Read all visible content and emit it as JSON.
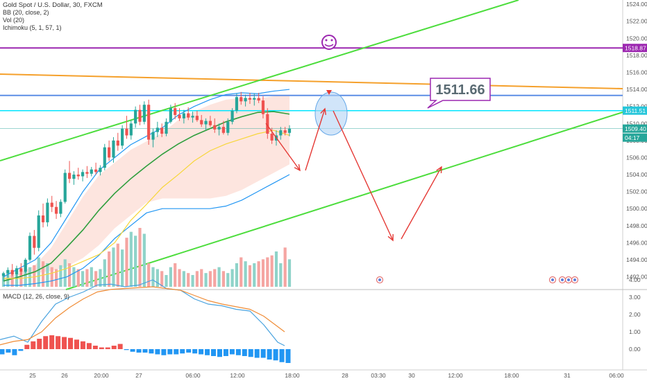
{
  "header": {
    "title": "Gold Spot / U.S. Dollar, 30, FXCM",
    "indicators": [
      "BB (20, close, 2)",
      "Vol (20)",
      "Ichimoku (5, 1, 57, 1)"
    ]
  },
  "macd": {
    "label": "MACD (12, 26, close, 9)",
    "ticks": [
      "4.00",
      "3.00",
      "2.00",
      "1.00",
      "0.00"
    ]
  },
  "chart_data": {
    "type": "candlestick",
    "symbol": "Gold Spot / U.S. Dollar",
    "timeframe": "30",
    "exchange": "FXCM",
    "price_ticks": [
      "1524.00",
      "1522.00",
      "1520.00",
      "1518.00",
      "1516.00",
      "1514.00",
      "1512.00",
      "1510.00",
      "1508.00",
      "1506.00",
      "1504.00",
      "1502.00",
      "1500.00",
      "1498.00",
      "1496.00",
      "1494.00",
      "1492.00"
    ],
    "price_range": [
      1490.5,
      1524.5
    ],
    "time_labels": [
      "25",
      "26",
      "20:00",
      "27",
      "06:00",
      "12:00",
      "18:00",
      "28",
      "03:30",
      "30",
      "12:00",
      "18:00",
      "31",
      "06:00"
    ],
    "price_badges": [
      {
        "value": "1518.87",
        "color": "#9c27b0"
      },
      {
        "value": "1511.51",
        "color": "#26c6da"
      },
      {
        "value": "1509.40",
        "color": "#26a69a"
      },
      {
        "value": "04:17",
        "color": "#26a69a"
      }
    ],
    "callout": "1511.66",
    "horizontal_levels": [
      {
        "price": 1518.87,
        "color": "#9c27b0"
      },
      {
        "price": 1511.51,
        "color": "#00e5ff"
      },
      {
        "price": 1513.3,
        "color": "#5c8ee6"
      },
      {
        "price": 1509.4,
        "color": "#26a69a"
      }
    ],
    "candles": [
      [
        1492.1,
        1492.6,
        1491.5,
        1492.4
      ],
      [
        1492.4,
        1493.1,
        1491.9,
        1492.8
      ],
      [
        1492.8,
        1493.5,
        1492.1,
        1492.3
      ],
      [
        1492.3,
        1493.3,
        1491.8,
        1493.0
      ],
      [
        1493.0,
        1493.6,
        1492.2,
        1492.6
      ],
      [
        1492.6,
        1494.2,
        1492.4,
        1494.0
      ],
      [
        1494.0,
        1497.2,
        1493.8,
        1496.8
      ],
      [
        1496.8,
        1497.5,
        1494.6,
        1495.4
      ],
      [
        1495.4,
        1499.8,
        1495.0,
        1499.2
      ],
      [
        1499.2,
        1500.6,
        1497.8,
        1498.4
      ],
      [
        1498.4,
        1501.2,
        1497.9,
        1500.7
      ],
      [
        1500.7,
        1501.5,
        1499.6,
        1500.2
      ],
      [
        1500.2,
        1500.9,
        1498.8,
        1499.4
      ],
      [
        1499.4,
        1501.1,
        1499.0,
        1500.8
      ],
      [
        1500.8,
        1504.6,
        1500.6,
        1504.2
      ],
      [
        1504.2,
        1505.6,
        1503.0,
        1503.5
      ],
      [
        1503.5,
        1504.4,
        1502.8,
        1504.0
      ],
      [
        1504.0,
        1504.8,
        1503.4,
        1503.8
      ],
      [
        1503.8,
        1504.6,
        1503.2,
        1504.3
      ],
      [
        1504.3,
        1505.0,
        1503.6,
        1504.1
      ],
      [
        1504.1,
        1504.9,
        1503.8,
        1504.6
      ],
      [
        1504.6,
        1505.4,
        1504.0,
        1504.3
      ],
      [
        1504.3,
        1505.1,
        1503.9,
        1504.8
      ],
      [
        1504.8,
        1507.6,
        1504.5,
        1507.2
      ],
      [
        1507.2,
        1508.0,
        1505.6,
        1506.0
      ],
      [
        1506.0,
        1508.4,
        1505.4,
        1508.0
      ],
      [
        1508.0,
        1508.9,
        1506.8,
        1507.4
      ],
      [
        1507.4,
        1509.8,
        1507.0,
        1509.4
      ],
      [
        1509.4,
        1510.9,
        1508.2,
        1508.6
      ],
      [
        1508.6,
        1510.4,
        1508.1,
        1510.0
      ],
      [
        1510.0,
        1512.0,
        1509.5,
        1511.6
      ],
      [
        1511.6,
        1512.2,
        1509.8,
        1510.2
      ],
      [
        1510.2,
        1512.6,
        1509.9,
        1512.2
      ],
      [
        1512.2,
        1512.8,
        1507.5,
        1508.1
      ],
      [
        1508.1,
        1509.4,
        1507.2,
        1509.0
      ],
      [
        1509.0,
        1510.2,
        1508.4,
        1509.5
      ],
      [
        1509.5,
        1510.0,
        1508.4,
        1508.8
      ],
      [
        1508.8,
        1510.6,
        1508.5,
        1510.2
      ],
      [
        1510.2,
        1512.2,
        1510.0,
        1511.8
      ],
      [
        1511.8,
        1512.4,
        1510.5,
        1511.0
      ],
      [
        1511.0,
        1511.8,
        1510.3,
        1510.6
      ],
      [
        1510.6,
        1511.6,
        1510.0,
        1511.2
      ],
      [
        1511.2,
        1511.9,
        1510.4,
        1510.7
      ],
      [
        1510.7,
        1511.4,
        1510.1,
        1510.9
      ],
      [
        1510.9,
        1511.5,
        1510.2,
        1510.4
      ],
      [
        1510.4,
        1511.0,
        1509.6,
        1509.9
      ],
      [
        1509.9,
        1510.6,
        1509.2,
        1510.3
      ],
      [
        1510.3,
        1510.9,
        1509.6,
        1509.8
      ],
      [
        1509.8,
        1510.6,
        1508.9,
        1509.3
      ],
      [
        1509.3,
        1510.0,
        1508.6,
        1509.6
      ],
      [
        1509.6,
        1510.3,
        1508.7,
        1508.9
      ],
      [
        1508.9,
        1510.6,
        1508.6,
        1510.2
      ],
      [
        1510.2,
        1511.8,
        1509.9,
        1511.5
      ],
      [
        1511.5,
        1513.5,
        1511.2,
        1513.1
      ],
      [
        1513.1,
        1513.7,
        1512.2,
        1512.6
      ],
      [
        1512.6,
        1513.4,
        1512.0,
        1513.0
      ],
      [
        1513.0,
        1513.6,
        1512.3,
        1512.8
      ],
      [
        1512.8,
        1513.5,
        1512.1,
        1513.0
      ],
      [
        1513.0,
        1513.6,
        1512.4,
        1512.7
      ],
      [
        1512.7,
        1513.2,
        1510.6,
        1511.1
      ],
      [
        1511.1,
        1511.8,
        1508.2,
        1508.8
      ],
      [
        1508.8,
        1509.5,
        1507.6,
        1508.0
      ],
      [
        1508.0,
        1509.2,
        1507.4,
        1508.6
      ],
      [
        1508.6,
        1509.6,
        1508.1,
        1509.2
      ],
      [
        1509.2,
        1509.6,
        1508.6,
        1508.9
      ],
      [
        1508.9,
        1509.8,
        1508.5,
        1509.4
      ]
    ],
    "volume": [
      7,
      8,
      7,
      9,
      8,
      12,
      10,
      11,
      15,
      13,
      12,
      10,
      9,
      11,
      14,
      12,
      10,
      9,
      8,
      9,
      10,
      8,
      9,
      14,
      18,
      20,
      22,
      19,
      25,
      28,
      26,
      30,
      27,
      12,
      10,
      9,
      8,
      6,
      10,
      12,
      9,
      8,
      7,
      6,
      8,
      9,
      7,
      8,
      9,
      10,
      8,
      7,
      9,
      12,
      15,
      13,
      11,
      12,
      13,
      14,
      15,
      16,
      18,
      12,
      20,
      14
    ],
    "macd_values": [
      {
        "x": 0,
        "macd": 0.55,
        "signal": 0.25
      },
      {
        "x": 10,
        "macd": 0.75,
        "signal": 0.45
      },
      {
        "x": 20,
        "macd": 0.4,
        "signal": 0.55
      },
      {
        "x": 30,
        "macd": 1.6,
        "signal": 1.0
      },
      {
        "x": 40,
        "macd": 2.6,
        "signal": 1.8
      },
      {
        "x": 50,
        "macd": 3.0,
        "signal": 2.4
      },
      {
        "x": 60,
        "macd": 3.3,
        "signal": 2.9
      },
      {
        "x": 70,
        "macd": 3.7,
        "signal": 3.3
      },
      {
        "x": 80,
        "macd": 3.75,
        "signal": 3.45
      },
      {
        "x": 90,
        "macd": 3.6,
        "signal": 3.5
      },
      {
        "x": 100,
        "macd": 3.7,
        "signal": 3.55
      },
      {
        "x": 110,
        "macd": 4.0,
        "signal": 3.6
      },
      {
        "x": 120,
        "macd": 3.5,
        "signal": 3.5
      },
      {
        "x": 130,
        "macd": 3.4,
        "signal": 3.4
      },
      {
        "x": 140,
        "macd": 2.9,
        "signal": 3.1
      },
      {
        "x": 150,
        "macd": 2.6,
        "signal": 2.8
      },
      {
        "x": 160,
        "macd": 2.5,
        "signal": 2.6
      },
      {
        "x": 170,
        "macd": 2.3,
        "signal": 2.45
      },
      {
        "x": 180,
        "macd": 2.2,
        "signal": 2.3
      },
      {
        "x": 190,
        "macd": 1.4,
        "signal": 1.9
      },
      {
        "x": 200,
        "macd": 0.4,
        "signal": 1.3
      },
      {
        "x": 205,
        "macd": 0.2,
        "signal": 1.0
      }
    ],
    "macd_hist": [
      -0.3,
      -0.2,
      -0.35,
      -0.1,
      0.25,
      0.45,
      0.6,
      0.75,
      0.8,
      0.75,
      0.7,
      0.65,
      0.55,
      0.45,
      0.35,
      0.2,
      0.1,
      0.1,
      0.2,
      0.3,
      -0.05,
      -0.15,
      -0.2,
      -0.2,
      -0.25,
      -0.3,
      -0.35,
      -0.3,
      -0.3,
      -0.25,
      -0.2,
      -0.25,
      -0.3,
      -0.35,
      -0.4,
      -0.45,
      -0.4,
      -0.3,
      -0.35,
      -0.4,
      -0.45,
      -0.5,
      -0.5,
      -0.6,
      -0.65,
      -0.75,
      -0.8
    ]
  },
  "colors": {
    "up": "#26a69a",
    "down": "#ef5350",
    "bb_upper": "#2196f3",
    "bb_basis": "#2e9e3c",
    "bb_lower": "#f7d63a",
    "cloud": "#fde2dc",
    "trend_green": "#4cdd3c",
    "orange_line": "#f5a02b",
    "arrows": "#e53935",
    "macd_line": "#4aa3df",
    "signal_line": "#f08c36"
  },
  "icons": [
    "smiley-icon",
    "earnings-icon"
  ]
}
